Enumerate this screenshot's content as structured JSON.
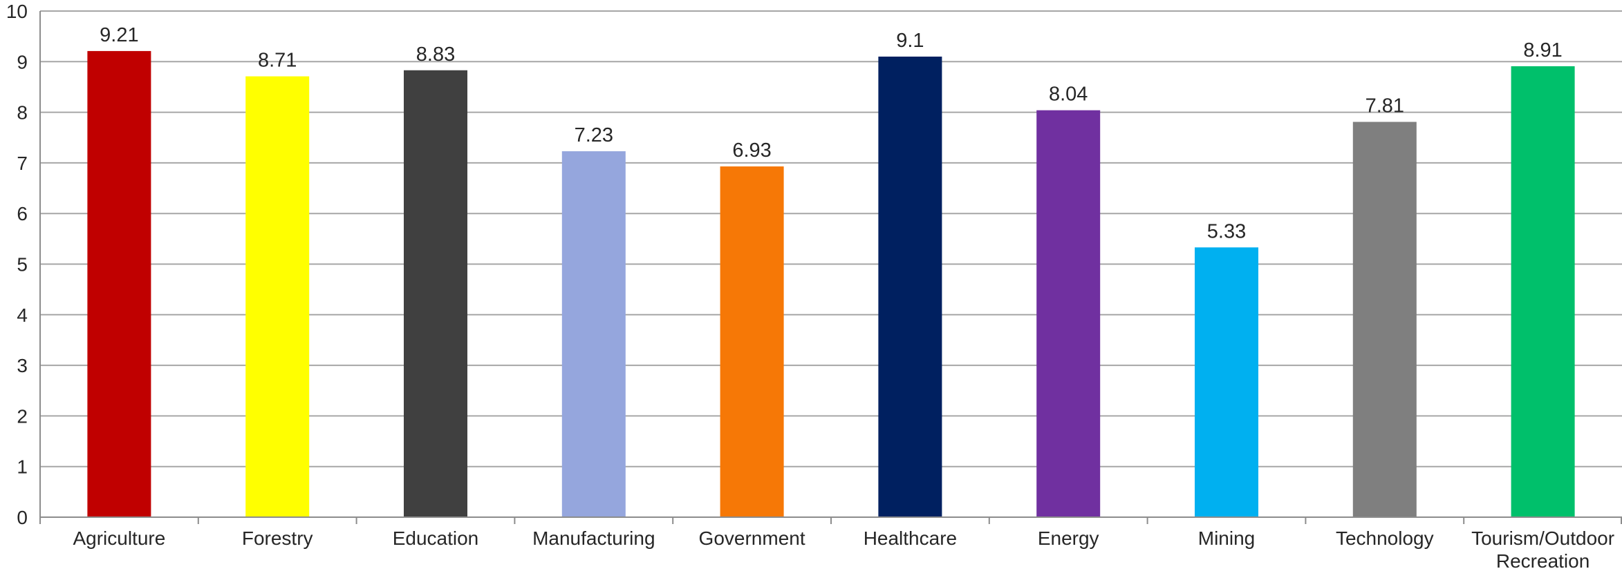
{
  "chart_data": {
    "type": "bar",
    "title": "",
    "xlabel": "",
    "ylabel": "",
    "categories": [
      [
        "Agriculture"
      ],
      [
        "Forestry"
      ],
      [
        "Education"
      ],
      [
        "Manufacturing"
      ],
      [
        "Government"
      ],
      [
        "Healthcare"
      ],
      [
        "Energy"
      ],
      [
        "Mining"
      ],
      [
        "Technology"
      ],
      [
        "Tourism/Outdoor",
        "Recreation"
      ]
    ],
    "values": [
      9.21,
      8.71,
      8.83,
      7.23,
      6.93,
      9.1,
      8.04,
      5.33,
      7.81,
      8.91
    ],
    "data_labels": [
      "9.21",
      "8.71",
      "8.83",
      "7.23",
      "6.93",
      "9.1",
      "8.04",
      "5.33",
      "7.81",
      "8.91"
    ],
    "colors": [
      "#c00000",
      "#ffff00",
      "#404040",
      "#95a6dd",
      "#f67806",
      "#002060",
      "#7030a0",
      "#00b0f0",
      "#7f7f7f",
      "#00c06b"
    ],
    "ylim": [
      0,
      10
    ],
    "yticks": [
      0,
      1,
      2,
      3,
      4,
      5,
      6,
      7,
      8,
      9,
      10
    ],
    "grid": true,
    "legend": "none"
  }
}
